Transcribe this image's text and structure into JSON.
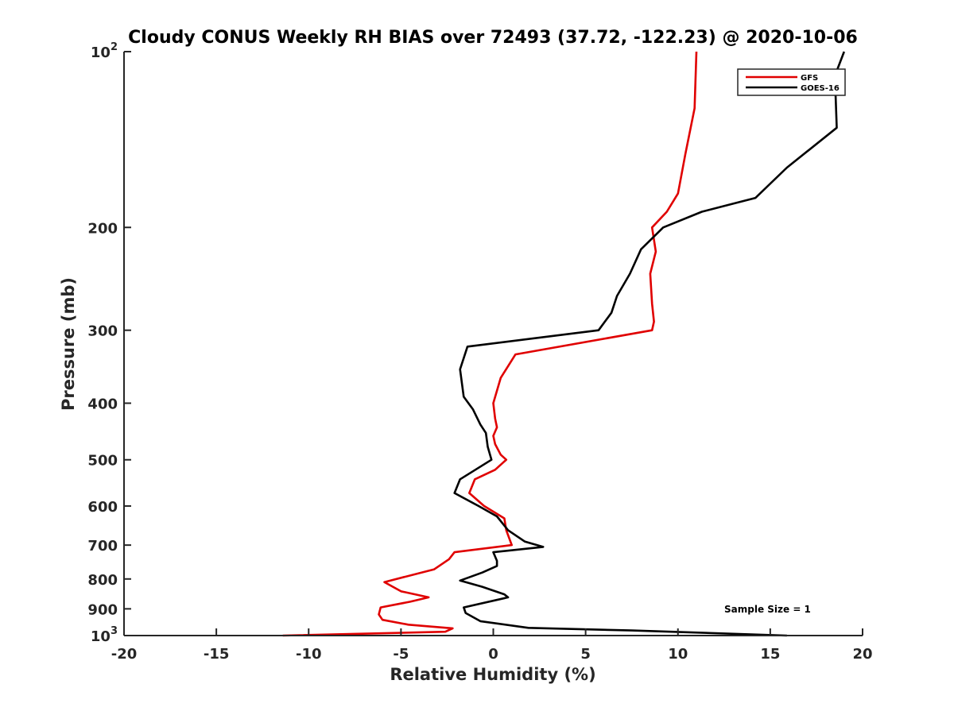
{
  "chart_data": {
    "type": "line",
    "title": "Cloudy CONUS Weekly RH BIAS over 72493 (37.72, -122.23) @ 2020-10-06",
    "xlabel": "Relative Humidity (%)",
    "ylabel": "Pressure (mb)",
    "xlim": [
      -20,
      20
    ],
    "ylim": [
      100,
      1000
    ],
    "yscale": "log",
    "y_reversed": true,
    "grid": false,
    "legend_position": "top-right",
    "x_ticks": [
      -20,
      -15,
      -10,
      -5,
      0,
      5,
      10,
      15,
      20
    ],
    "x_tick_labels": [
      "-20",
      "-15",
      "-10",
      "-5",
      "0",
      "5",
      "10",
      "15",
      "20"
    ],
    "y_ticks": [
      100,
      200,
      300,
      400,
      500,
      600,
      700,
      800,
      900,
      1000
    ],
    "y_tick_labels": [
      {
        "base": "10",
        "exp": "2"
      },
      {
        "base": "200"
      },
      {
        "base": "300"
      },
      {
        "base": "400"
      },
      {
        "base": "500"
      },
      {
        "base": "600"
      },
      {
        "base": "700"
      },
      {
        "base": "800"
      },
      {
        "base": "900"
      },
      {
        "base": "10",
        "exp": "3"
      }
    ],
    "annotation": "Sample Size = 1",
    "series": [
      {
        "name": "GFS",
        "color": "#e00000",
        "points": [
          [
            11.0,
            100
          ],
          [
            10.9,
            125
          ],
          [
            10.4,
            150
          ],
          [
            10.0,
            175
          ],
          [
            9.4,
            188
          ],
          [
            8.6,
            200
          ],
          [
            8.8,
            220
          ],
          [
            8.5,
            240
          ],
          [
            8.6,
            270
          ],
          [
            8.7,
            290
          ],
          [
            8.6,
            300
          ],
          [
            1.2,
            330
          ],
          [
            0.4,
            362
          ],
          [
            0.0,
            400
          ],
          [
            0.1,
            425
          ],
          [
            0.2,
            440
          ],
          [
            0.0,
            455
          ],
          [
            0.1,
            470
          ],
          [
            0.4,
            490
          ],
          [
            0.7,
            500
          ],
          [
            0.1,
            520
          ],
          [
            -1.0,
            540
          ],
          [
            -1.3,
            570
          ],
          [
            -0.5,
            600
          ],
          [
            0.6,
            630
          ],
          [
            0.7,
            660
          ],
          [
            1.0,
            700
          ],
          [
            -2.1,
            720
          ],
          [
            -2.4,
            740
          ],
          [
            -3.2,
            770
          ],
          [
            -5.9,
            810
          ],
          [
            -5.0,
            840
          ],
          [
            -3.5,
            860
          ],
          [
            -4.5,
            875
          ],
          [
            -6.1,
            895
          ],
          [
            -6.2,
            920
          ],
          [
            -6.0,
            940
          ],
          [
            -4.6,
            958
          ],
          [
            -2.2,
            972
          ],
          [
            -2.6,
            985
          ],
          [
            -11.4,
            1000
          ]
        ]
      },
      {
        "name": "GOES-16",
        "color": "#000000",
        "points": [
          [
            19.0,
            100
          ],
          [
            18.5,
            110
          ],
          [
            18.6,
            135
          ],
          [
            15.9,
            158
          ],
          [
            14.2,
            178
          ],
          [
            11.3,
            188
          ],
          [
            9.2,
            200
          ],
          [
            8.0,
            218
          ],
          [
            7.4,
            240
          ],
          [
            6.7,
            262
          ],
          [
            6.4,
            280
          ],
          [
            5.7,
            300
          ],
          [
            -1.4,
            320
          ],
          [
            -1.8,
            350
          ],
          [
            -1.6,
            390
          ],
          [
            -1.1,
            410
          ],
          [
            -0.7,
            435
          ],
          [
            -0.4,
            450
          ],
          [
            -0.3,
            475
          ],
          [
            -0.1,
            500
          ],
          [
            -1.8,
            540
          ],
          [
            -2.1,
            570
          ],
          [
            -0.8,
            600
          ],
          [
            0.2,
            625
          ],
          [
            0.8,
            660
          ],
          [
            1.7,
            690
          ],
          [
            2.7,
            705
          ],
          [
            0.0,
            720
          ],
          [
            0.2,
            745
          ],
          [
            0.2,
            760
          ],
          [
            -0.6,
            780
          ],
          [
            -1.8,
            805
          ],
          [
            -0.6,
            825
          ],
          [
            0.6,
            850
          ],
          [
            0.8,
            860
          ],
          [
            -1.6,
            895
          ],
          [
            -1.5,
            915
          ],
          [
            -0.7,
            945
          ],
          [
            1.9,
            970
          ],
          [
            7.5,
            980
          ],
          [
            15.9,
            1000
          ]
        ]
      }
    ]
  }
}
